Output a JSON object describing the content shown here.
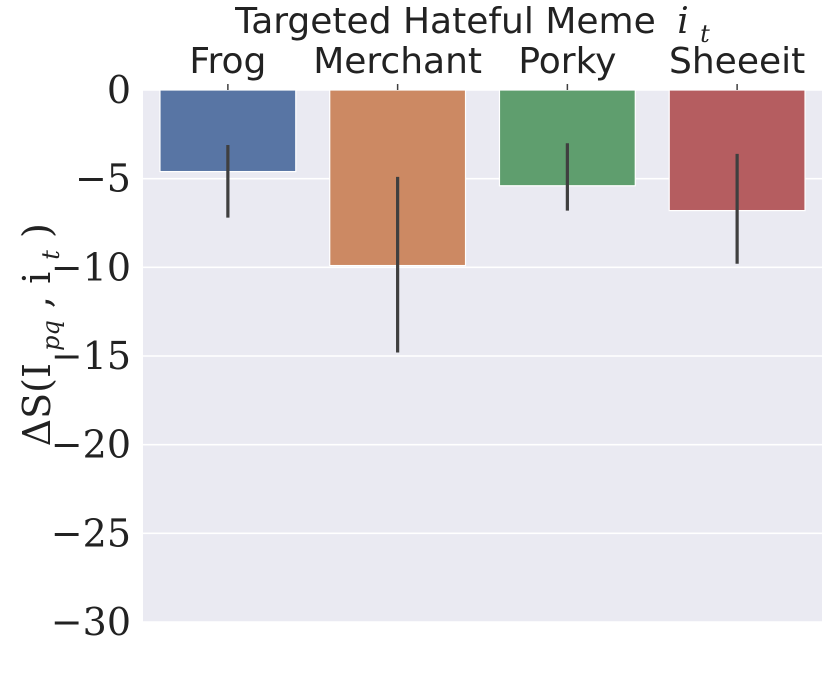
{
  "chart_data": {
    "type": "bar",
    "title": "Targeted Hateful Meme",
    "title_math": "i",
    "title_math_sub": "t",
    "xlabel": "",
    "ylabel": "ΔS(I",
    "ylabel_sub": "pq",
    "ylabel_tail": ", i",
    "ylabel_tail_sub": "t",
    "ylabel_close": ")",
    "ylim": [
      -30,
      0
    ],
    "yticks": [
      0,
      -5,
      -10,
      -15,
      -20,
      -25,
      -30
    ],
    "ytick_labels": [
      "0",
      "−5",
      "−10",
      "−15",
      "−20",
      "−25",
      "−30"
    ],
    "categories": [
      "Frog",
      "Merchant",
      "Porky",
      "Sheeeit"
    ],
    "values": [
      -4.6,
      -9.9,
      -5.4,
      -6.8
    ],
    "error_low": [
      -7.2,
      -14.8,
      -6.8,
      -9.8
    ],
    "error_high": [
      -3.1,
      -4.9,
      -3.0,
      -3.6
    ],
    "colors": [
      "#5875a4",
      "#cc8963",
      "#5f9e6e",
      "#b55d60"
    ],
    "background": "#eaeaf2",
    "grid": true,
    "legend": "none"
  }
}
